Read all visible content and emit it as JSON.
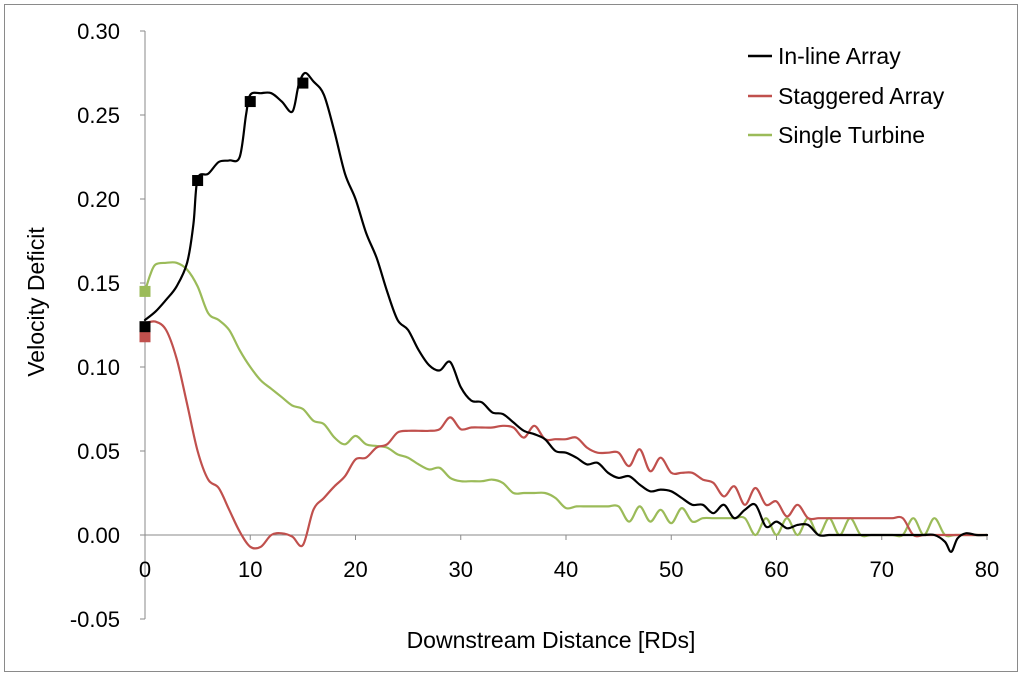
{
  "chart_data": {
    "type": "line",
    "title": "",
    "xlabel": "Downstream Distance [RDs]",
    "ylabel": "Velocity Deficit",
    "xlim": [
      0,
      80
    ],
    "ylim": [
      -0.05,
      0.3
    ],
    "x_ticks": [
      "0",
      "10",
      "20",
      "30",
      "40",
      "50",
      "60",
      "70",
      "80"
    ],
    "y_ticks": [
      "-0.05",
      "0.00",
      "0.05",
      "0.10",
      "0.15",
      "0.20",
      "0.25",
      "0.30"
    ],
    "grid": false,
    "legend_position": "top-right",
    "series": [
      {
        "name": "In-line Array",
        "color": "#000000",
        "x": [
          0,
          1,
          2,
          3,
          4,
          4.6,
          5,
          6,
          7,
          8,
          9,
          9.6,
          10,
          11,
          12,
          13,
          14,
          14.6,
          15.2,
          16,
          17,
          18,
          19,
          20,
          21,
          22,
          23,
          24,
          25,
          26,
          27,
          28,
          29,
          30,
          31,
          32,
          33,
          34,
          35,
          36,
          37,
          38,
          39,
          40,
          41,
          42,
          43,
          44,
          45,
          46,
          47,
          48,
          49,
          50,
          51,
          52,
          53,
          54,
          55,
          56,
          57,
          58,
          59,
          60,
          61,
          62,
          63,
          64,
          65,
          66,
          67,
          68,
          69,
          70,
          71,
          72,
          73,
          74,
          75,
          76,
          76.6,
          77.2,
          78,
          79,
          80
        ],
        "values": [
          0.128,
          0.133,
          0.14,
          0.148,
          0.162,
          0.185,
          0.212,
          0.215,
          0.222,
          0.223,
          0.225,
          0.25,
          0.262,
          0.263,
          0.263,
          0.258,
          0.252,
          0.268,
          0.275,
          0.27,
          0.262,
          0.24,
          0.215,
          0.2,
          0.18,
          0.165,
          0.145,
          0.128,
          0.122,
          0.11,
          0.101,
          0.098,
          0.103,
          0.088,
          0.08,
          0.079,
          0.073,
          0.072,
          0.067,
          0.062,
          0.06,
          0.057,
          0.05,
          0.049,
          0.046,
          0.042,
          0.043,
          0.037,
          0.034,
          0.035,
          0.03,
          0.026,
          0.027,
          0.026,
          0.022,
          0.018,
          0.018,
          0.013,
          0.018,
          0.01,
          0.015,
          0.018,
          0.005,
          0.008,
          0.004,
          0.006,
          0.006,
          0.0,
          0.0,
          0.0,
          0.0,
          0.0,
          0.0,
          0.0,
          0.0,
          0.0,
          0.0,
          0.0,
          0.0,
          -0.004,
          -0.01,
          -0.002,
          0.001,
          0.0,
          0.0
        ],
        "markers": [
          [
            0,
            0.124
          ],
          [
            5,
            0.211
          ],
          [
            10,
            0.258
          ],
          [
            15,
            0.269
          ]
        ]
      },
      {
        "name": "Staggered Array",
        "color": "#c0504d",
        "x": [
          0,
          1,
          2,
          3,
          4,
          5,
          6,
          7,
          8,
          9,
          10,
          11,
          12,
          13,
          14,
          15,
          16,
          17,
          18,
          19,
          20,
          21,
          22,
          23,
          24,
          25,
          26,
          27,
          28,
          29,
          30,
          31,
          32,
          33,
          34,
          35,
          36,
          37,
          38,
          39,
          40,
          41,
          42,
          43,
          44,
          45,
          46,
          47,
          48,
          49,
          50,
          51,
          52,
          53,
          54,
          55,
          56,
          57,
          58,
          59,
          60,
          61,
          62,
          63,
          64,
          65,
          66,
          67,
          68,
          69,
          70,
          71,
          72,
          73,
          74,
          75,
          76,
          77,
          78,
          79,
          80
        ],
        "values": [
          0.126,
          0.127,
          0.122,
          0.105,
          0.078,
          0.05,
          0.033,
          0.028,
          0.015,
          0.002,
          -0.007,
          -0.007,
          0.0,
          0.001,
          -0.001,
          -0.006,
          0.015,
          0.022,
          0.029,
          0.035,
          0.045,
          0.046,
          0.052,
          0.054,
          0.061,
          0.062,
          0.062,
          0.062,
          0.063,
          0.07,
          0.063,
          0.064,
          0.064,
          0.064,
          0.065,
          0.064,
          0.058,
          0.065,
          0.057,
          0.057,
          0.057,
          0.058,
          0.052,
          0.049,
          0.049,
          0.049,
          0.041,
          0.051,
          0.038,
          0.046,
          0.037,
          0.037,
          0.037,
          0.033,
          0.031,
          0.023,
          0.029,
          0.018,
          0.028,
          0.018,
          0.02,
          0.011,
          0.018,
          0.01,
          0.01,
          0.01,
          0.01,
          0.01,
          0.01,
          0.01,
          0.01,
          0.01,
          0.01,
          0.0,
          0.0,
          0.0,
          0.0,
          0.0,
          0.0,
          0.0,
          0.0
        ],
        "markers": [
          [
            0,
            0.118
          ]
        ]
      },
      {
        "name": "Single Turbine",
        "color": "#9bbb59",
        "x": [
          0,
          0.5,
          1,
          2,
          3,
          4,
          5,
          6,
          7,
          8,
          9,
          10,
          11,
          12,
          13,
          14,
          15,
          16,
          17,
          18,
          19,
          20,
          21,
          22,
          23,
          24,
          25,
          26,
          27,
          28,
          29,
          30,
          31,
          32,
          33,
          34,
          35,
          36,
          37,
          38,
          39,
          40,
          41,
          42,
          43,
          44,
          45,
          46,
          47,
          48,
          49,
          50,
          51,
          52,
          53,
          54,
          55,
          56,
          57,
          58,
          59,
          60,
          61,
          62,
          63,
          64,
          65,
          66,
          67,
          68,
          69,
          70,
          71,
          72,
          73,
          74,
          75,
          76,
          77,
          78,
          79,
          80
        ],
        "values": [
          0.145,
          0.155,
          0.161,
          0.162,
          0.162,
          0.158,
          0.148,
          0.132,
          0.128,
          0.122,
          0.11,
          0.1,
          0.092,
          0.087,
          0.082,
          0.077,
          0.075,
          0.068,
          0.066,
          0.058,
          0.054,
          0.059,
          0.054,
          0.053,
          0.052,
          0.048,
          0.046,
          0.042,
          0.039,
          0.04,
          0.034,
          0.032,
          0.032,
          0.032,
          0.033,
          0.031,
          0.025,
          0.025,
          0.025,
          0.025,
          0.022,
          0.016,
          0.017,
          0.017,
          0.017,
          0.017,
          0.017,
          0.008,
          0.017,
          0.008,
          0.015,
          0.007,
          0.016,
          0.008,
          0.01,
          0.01,
          0.01,
          0.01,
          0.01,
          0.0,
          0.01,
          0.0,
          0.01,
          0.0,
          0.01,
          0.0,
          0.01,
          0.0,
          0.01,
          0.0,
          0.0,
          0.0,
          0.0,
          0.0,
          0.01,
          0.0,
          0.01,
          0.0,
          0.0,
          0.0,
          0.0,
          0.0
        ],
        "markers": [
          [
            0,
            0.145
          ]
        ]
      }
    ]
  }
}
